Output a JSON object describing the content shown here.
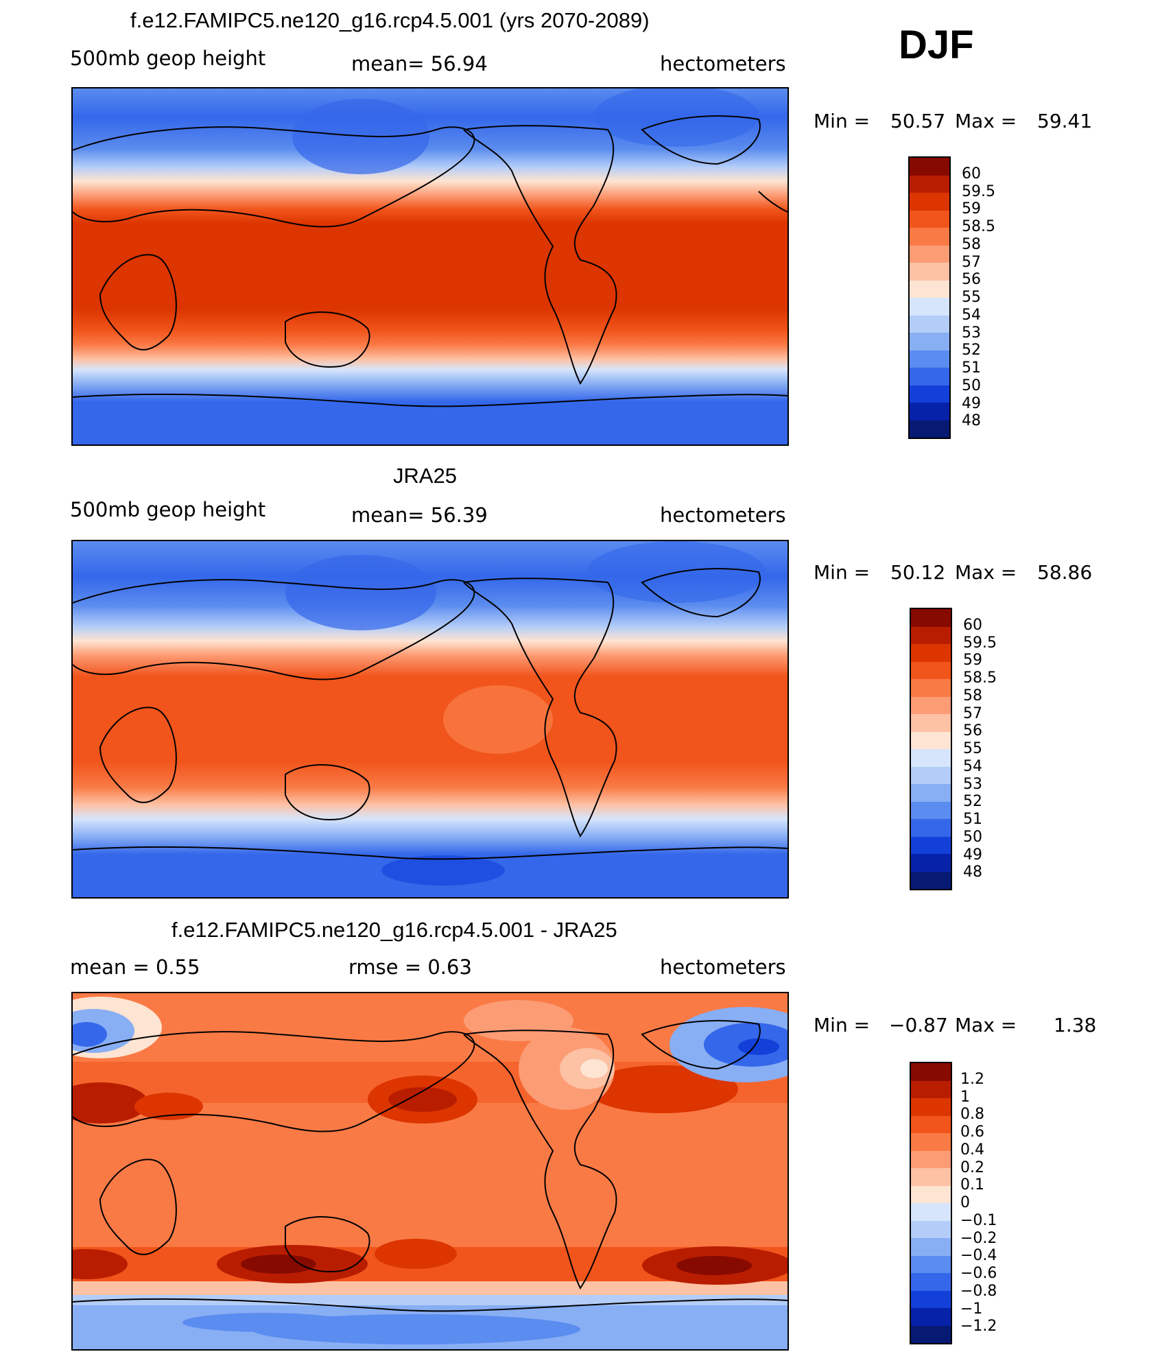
{
  "season": "DJF",
  "panels": [
    {
      "title": "f.e12.FAMIPC5.ne120_g16.rcp4.5.001 (yrs 2070-2089)",
      "left_label": "500mb  geop  height",
      "center_label": "mean=   56.94",
      "units": "hectometers",
      "stats": {
        "min_label": "Min  =",
        "min": "50.57",
        "max_label": "Max  =",
        "max": "59.41"
      },
      "colorbar": {
        "labels": [
          "60",
          "59.5",
          "59",
          "58.5",
          "58",
          "57",
          "56",
          "55",
          "54",
          "53",
          "52",
          "51",
          "50",
          "49",
          "48"
        ],
        "colors": [
          "#870a00",
          "#b91d00",
          "#dc3500",
          "#f1551c",
          "#fa7a45",
          "#fc9c75",
          "#fdc1a4",
          "#fee4d2",
          "#d6e5fb",
          "#b3cdf8",
          "#88aef4",
          "#5b8cef",
          "#3467ea",
          "#1240d8",
          "#0622a8",
          "#061a73"
        ]
      },
      "chart_data": {
        "type": "heatmap",
        "title": "f.e12.FAMIPC5.ne120_g16.rcp4.5.001 (yrs 2070-2089)",
        "variable": "500mb geop height",
        "units": "hectometers",
        "mean": 56.94,
        "min": 50.57,
        "max": 59.41,
        "levels": [
          48,
          49,
          50,
          51,
          52,
          53,
          54,
          55,
          56,
          57,
          58,
          58.5,
          59,
          59.5,
          60
        ],
        "latitude_bands": [
          {
            "lat": 80,
            "value": 51.0
          },
          {
            "lat": 60,
            "value": 52.5
          },
          {
            "lat": 45,
            "value": 55.5
          },
          {
            "lat": 30,
            "value": 58.0
          },
          {
            "lat": 15,
            "value": 59.0
          },
          {
            "lat": 0,
            "value": 59.0
          },
          {
            "lat": -15,
            "value": 59.0
          },
          {
            "lat": -30,
            "value": 58.0
          },
          {
            "lat": -45,
            "value": 55.5
          },
          {
            "lat": -60,
            "value": 51.5
          },
          {
            "lat": -80,
            "value": 50.8
          }
        ]
      }
    },
    {
      "title": "JRA25",
      "left_label": "500mb  geop  height",
      "center_label": "mean=   56.39",
      "units": "hectometers",
      "stats": {
        "min_label": "Min  =",
        "min": "50.12",
        "max_label": "Max  =",
        "max": "58.86"
      },
      "colorbar": {
        "labels": [
          "60",
          "59.5",
          "59",
          "58.5",
          "58",
          "57",
          "56",
          "55",
          "54",
          "53",
          "52",
          "51",
          "50",
          "49",
          "48"
        ],
        "colors": [
          "#870a00",
          "#b91d00",
          "#dc3500",
          "#f1551c",
          "#fa7a45",
          "#fc9c75",
          "#fdc1a4",
          "#fee4d2",
          "#d6e5fb",
          "#b3cdf8",
          "#88aef4",
          "#5b8cef",
          "#3467ea",
          "#1240d8",
          "#0622a8",
          "#061a73"
        ]
      },
      "chart_data": {
        "type": "heatmap",
        "title": "JRA25",
        "variable": "500mb geop height",
        "units": "hectometers",
        "mean": 56.39,
        "min": 50.12,
        "max": 58.86,
        "levels": [
          48,
          49,
          50,
          51,
          52,
          53,
          54,
          55,
          56,
          57,
          58,
          58.5,
          59,
          59.5,
          60
        ],
        "latitude_bands": [
          {
            "lat": 80,
            "value": 50.5
          },
          {
            "lat": 60,
            "value": 52.0
          },
          {
            "lat": 45,
            "value": 55.0
          },
          {
            "lat": 30,
            "value": 57.5
          },
          {
            "lat": 15,
            "value": 58.3
          },
          {
            "lat": 0,
            "value": 58.3
          },
          {
            "lat": -15,
            "value": 58.3
          },
          {
            "lat": -30,
            "value": 57.5
          },
          {
            "lat": -45,
            "value": 55.0
          },
          {
            "lat": -60,
            "value": 51.0
          },
          {
            "lat": -80,
            "value": 50.3
          }
        ]
      }
    },
    {
      "title": "f.e12.FAMIPC5.ne120_g16.rcp4.5.001 - JRA25",
      "left_label": "mean  =     0.55",
      "center_label": "rmse  =     0.63",
      "units": "hectometers",
      "stats": {
        "min_label": "Min  =",
        "min": "−0.87",
        "max_label": "Max  =",
        "max": "1.38"
      },
      "colorbar": {
        "labels": [
          "1.2",
          "1",
          "0.8",
          "0.6",
          "0.4",
          "0.2",
          "0.1",
          "0",
          "−0.1",
          "−0.2",
          "−0.4",
          "−0.6",
          "−0.8",
          "−1",
          "−1.2"
        ],
        "colors": [
          "#870a00",
          "#b91d00",
          "#dc3500",
          "#f1551c",
          "#fa7a45",
          "#fc9c75",
          "#fdc1a4",
          "#fee4d2",
          "#d6e5fb",
          "#b3cdf8",
          "#88aef4",
          "#5b8cef",
          "#3467ea",
          "#1240d8",
          "#0622a8",
          "#061a73"
        ]
      },
      "chart_data": {
        "type": "heatmap",
        "title": "f.e12.FAMIPC5.ne120_g16.rcp4.5.001 - JRA25",
        "variable": "500mb geop height difference",
        "units": "hectometers",
        "mean": 0.55,
        "rmse": 0.63,
        "min": -0.87,
        "max": 1.38,
        "levels": [
          -1.2,
          -1,
          -0.8,
          -0.6,
          -0.4,
          -0.2,
          -0.1,
          0,
          0.1,
          0.2,
          0.4,
          0.6,
          0.8,
          1,
          1.2
        ],
        "latitude_bands": [
          {
            "lat": 80,
            "value": 0.5
          },
          {
            "lat": 60,
            "value": 0.7
          },
          {
            "lat": 45,
            "value": 0.6
          },
          {
            "lat": 30,
            "value": 0.5
          },
          {
            "lat": 0,
            "value": 0.45
          },
          {
            "lat": -30,
            "value": 0.5
          },
          {
            "lat": -50,
            "value": 0.9
          },
          {
            "lat": -65,
            "value": 0.1
          },
          {
            "lat": -80,
            "value": -0.3
          }
        ]
      }
    }
  ]
}
